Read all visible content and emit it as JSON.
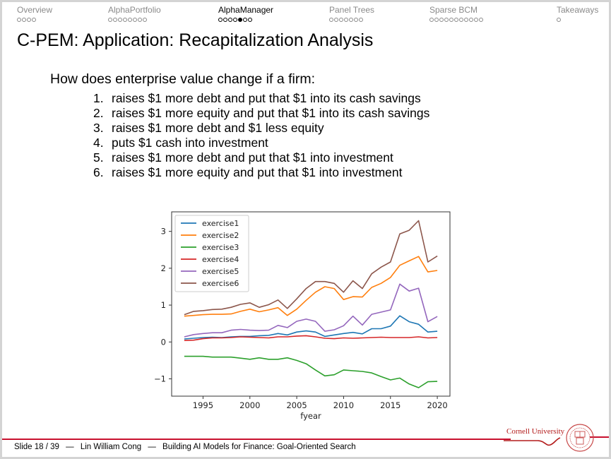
{
  "nav": {
    "sections": [
      {
        "label": "Overview",
        "dots": 4,
        "filled": -1,
        "active": false
      },
      {
        "label": "AlphaPortfolio",
        "dots": 8,
        "filled": -1,
        "active": false
      },
      {
        "label": "AlphaManager",
        "dots": 7,
        "filled": 4,
        "active": true
      },
      {
        "label": "Panel Trees",
        "dots": 7,
        "filled": -1,
        "active": false
      },
      {
        "label": "Sparse BCM",
        "dots": 11,
        "filled": -1,
        "active": false
      },
      {
        "label": "Takeaways",
        "dots": 1,
        "filled": -1,
        "active": false
      }
    ]
  },
  "slide": {
    "title": "C-PEM: Application: Recapitalization Analysis",
    "question": "How does enterprise value change if a firm:",
    "items": [
      {
        "num": "1.",
        "text": "raises $1 more debt and put that $1 into its cash savings"
      },
      {
        "num": "2.",
        "text": "raises $1 more equity and put that $1 into its cash savings"
      },
      {
        "num": "3.",
        "text": "raises $1 more debt and $1 less equity"
      },
      {
        "num": "4.",
        "text": "puts $1 cash into investment"
      },
      {
        "num": "5.",
        "text": "raises $1 more debt and put that $1 into investment"
      },
      {
        "num": "6.",
        "text": "raises $1 more equity and put that $1 into investment"
      }
    ]
  },
  "chart_data": {
    "type": "line",
    "title": "",
    "xlabel": "fyear",
    "ylabel": "",
    "xlim": [
      1991.65,
      2021.35
    ],
    "ylim": [
      -1.47,
      3.53
    ],
    "xticks": [
      1995,
      2000,
      2005,
      2010,
      2015,
      2020
    ],
    "yticks": [
      -1,
      0,
      1,
      2,
      3
    ],
    "legend_position": "top-left",
    "x": [
      1993,
      1994,
      1995,
      1996,
      1997,
      1998,
      1999,
      2000,
      2001,
      2002,
      2003,
      2004,
      2005,
      2006,
      2007,
      2008,
      2009,
      2010,
      2011,
      2012,
      2013,
      2014,
      2015,
      2016,
      2017,
      2018,
      2019,
      2020
    ],
    "series": [
      {
        "name": "exercise1",
        "color": "#1f77b4",
        "values": [
          0.08,
          0.1,
          0.12,
          0.13,
          0.12,
          0.14,
          0.15,
          0.15,
          0.17,
          0.18,
          0.23,
          0.19,
          0.27,
          0.3,
          0.27,
          0.15,
          0.19,
          0.23,
          0.26,
          0.22,
          0.36,
          0.36,
          0.43,
          0.71,
          0.55,
          0.48,
          0.27,
          0.29
        ]
      },
      {
        "name": "exercise2",
        "color": "#ff7f0e",
        "values": [
          0.7,
          0.72,
          0.74,
          0.75,
          0.75,
          0.76,
          0.83,
          0.89,
          0.82,
          0.87,
          0.93,
          0.72,
          0.89,
          1.13,
          1.35,
          1.5,
          1.45,
          1.15,
          1.23,
          1.22,
          1.48,
          1.59,
          1.75,
          2.08,
          2.2,
          2.32,
          1.9,
          1.94
        ]
      },
      {
        "name": "exercise3",
        "color": "#2ca02c",
        "values": [
          -0.39,
          -0.39,
          -0.39,
          -0.41,
          -0.41,
          -0.41,
          -0.44,
          -0.47,
          -0.43,
          -0.47,
          -0.47,
          -0.43,
          -0.5,
          -0.59,
          -0.76,
          -0.92,
          -0.89,
          -0.76,
          -0.78,
          -0.8,
          -0.84,
          -0.94,
          -1.03,
          -0.98,
          -1.14,
          -1.24,
          -1.08,
          -1.07
        ]
      },
      {
        "name": "exercise4",
        "color": "#d62728",
        "values": [
          0.04,
          0.05,
          0.09,
          0.11,
          0.11,
          0.12,
          0.14,
          0.13,
          0.12,
          0.11,
          0.14,
          0.14,
          0.16,
          0.17,
          0.14,
          0.1,
          0.09,
          0.11,
          0.1,
          0.11,
          0.12,
          0.13,
          0.12,
          0.12,
          0.12,
          0.14,
          0.11,
          0.12
        ]
      },
      {
        "name": "exercise5",
        "color": "#9467bd",
        "values": [
          0.14,
          0.2,
          0.23,
          0.25,
          0.25,
          0.32,
          0.34,
          0.32,
          0.31,
          0.32,
          0.45,
          0.39,
          0.56,
          0.62,
          0.56,
          0.29,
          0.33,
          0.44,
          0.7,
          0.46,
          0.75,
          0.81,
          0.87,
          1.57,
          1.38,
          1.46,
          0.55,
          0.69
        ]
      },
      {
        "name": "exercise6",
        "color": "#8c564b",
        "values": [
          0.74,
          0.83,
          0.85,
          0.88,
          0.89,
          0.94,
          1.02,
          1.06,
          0.94,
          1.01,
          1.14,
          0.91,
          1.17,
          1.45,
          1.64,
          1.64,
          1.59,
          1.35,
          1.66,
          1.45,
          1.85,
          2.03,
          2.17,
          2.93,
          3.03,
          3.29,
          2.17,
          2.33
        ]
      }
    ]
  },
  "footer": {
    "slide_number": "Slide 18 / 39",
    "separator": "—",
    "author": "Lin William Cong",
    "talk_title": "Building AI Models for Finance: Goal-Oriented Search"
  },
  "logo": {
    "text": "Cornell University",
    "color": "#b31b1b"
  }
}
